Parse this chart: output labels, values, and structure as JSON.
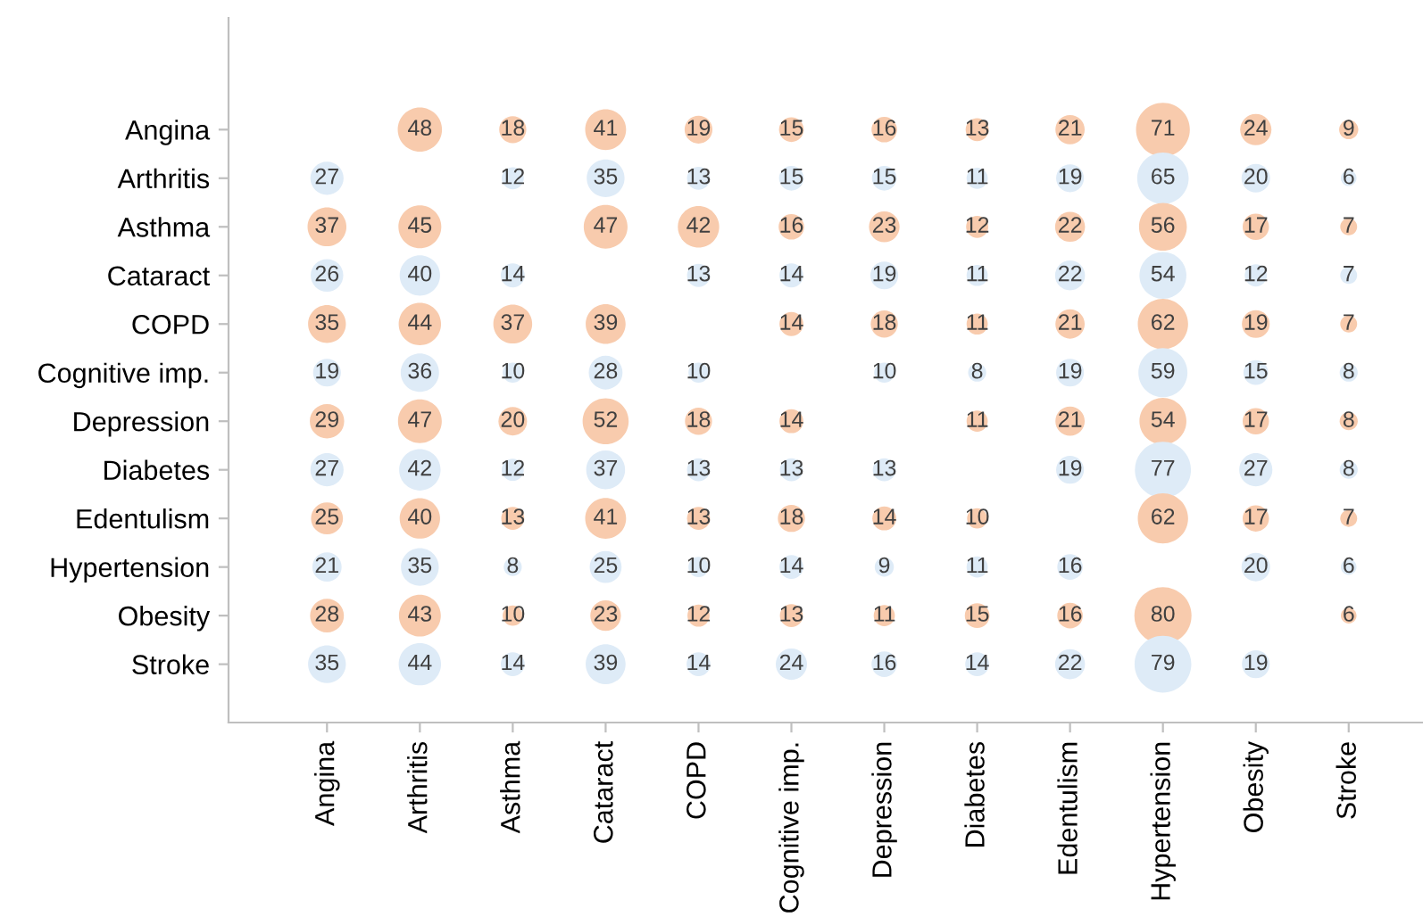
{
  "chart_data": {
    "type": "heatmap",
    "marker": "circle",
    "data_labels": true,
    "grid": false,
    "legend": false,
    "categories": [
      "Angina",
      "Arthritis",
      "Asthma",
      "Cataract",
      "COPD",
      "Cognitive imp.",
      "Depression",
      "Diabetes",
      "Edentulism",
      "Hypertension",
      "Obesity",
      "Stroke"
    ],
    "y_categories": [
      "Angina",
      "Arthritis",
      "Asthma",
      "Cataract",
      "COPD",
      "Cognitive imp.",
      "Depression",
      "Diabetes",
      "Edentulism",
      "Hypertension",
      "Obesity",
      "Stroke"
    ],
    "colors": [
      "#f8cbad",
      "#deebf7",
      "#f8cbad",
      "#deebf7",
      "#f8cbad",
      "#deebf7",
      "#f8cbad",
      "#deebf7",
      "#f8cbad",
      "#deebf7",
      "#f8cbad",
      "#deebf7"
    ],
    "cells": [
      [
        null,
        48,
        18,
        41,
        19,
        15,
        16,
        13,
        21,
        71,
        24,
        9
      ],
      [
        27,
        null,
        12,
        35,
        13,
        15,
        15,
        11,
        19,
        65,
        20,
        6
      ],
      [
        37,
        45,
        null,
        47,
        42,
        16,
        23,
        12,
        22,
        56,
        17,
        7
      ],
      [
        26,
        40,
        14,
        null,
        13,
        14,
        19,
        11,
        22,
        54,
        12,
        7
      ],
      [
        35,
        44,
        37,
        39,
        null,
        14,
        18,
        11,
        21,
        62,
        19,
        7
      ],
      [
        19,
        36,
        10,
        28,
        10,
        null,
        10,
        8,
        19,
        59,
        15,
        8
      ],
      [
        29,
        47,
        20,
        52,
        18,
        14,
        null,
        11,
        21,
        54,
        17,
        8
      ],
      [
        27,
        42,
        12,
        37,
        13,
        13,
        13,
        null,
        19,
        77,
        27,
        8
      ],
      [
        25,
        40,
        13,
        41,
        13,
        18,
        14,
        10,
        null,
        62,
        17,
        7
      ],
      [
        21,
        35,
        8,
        25,
        10,
        14,
        9,
        11,
        16,
        null,
        20,
        6
      ],
      [
        28,
        43,
        10,
        23,
        12,
        13,
        11,
        15,
        16,
        80,
        null,
        6
      ],
      [
        35,
        44,
        14,
        39,
        14,
        24,
        16,
        14,
        22,
        79,
        19,
        null
      ]
    ]
  }
}
